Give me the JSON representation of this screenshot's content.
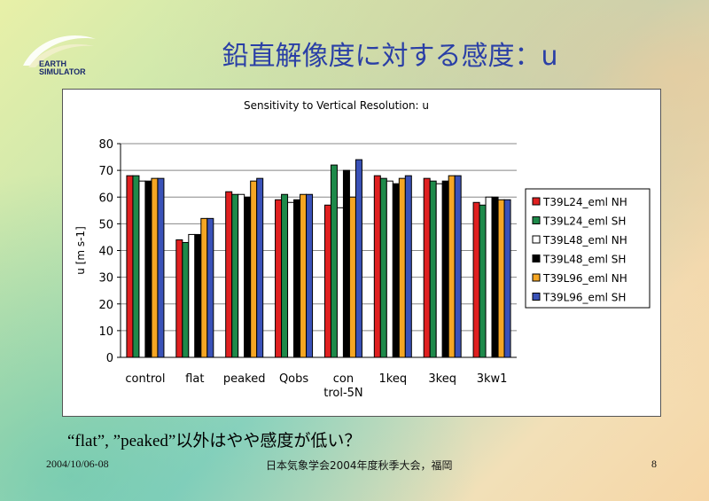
{
  "slide": {
    "title": "鉛直解像度に対する感度：u",
    "logo_line1": "EARTH",
    "logo_line2": "SIMULATOR",
    "caption": "“flat”, ”peaked”以外はやや感度が低い？",
    "footer_date": "2004/10/06-08",
    "footer_conf": "日本気象学会2004年度秋季大会，福岡",
    "page_number": "8"
  },
  "chart_data": {
    "type": "bar",
    "title": "Sensitivity to Vertical Resolution: u",
    "ylabel": "u [m s-1]",
    "xlabel": "",
    "ylim": [
      0,
      80
    ],
    "yticks": [
      0,
      10,
      20,
      30,
      40,
      50,
      60,
      70,
      80
    ],
    "grid": "horizontal",
    "legend": "right",
    "categories": [
      "control",
      "flat",
      "peaked",
      "Qobs",
      "con\ntrol-5N",
      "1keq",
      "3keq",
      "3kw1"
    ],
    "series": [
      {
        "name": "T39L24_eml NH",
        "color": "#e02020",
        "values": [
          68,
          44,
          62,
          59,
          57,
          68,
          67,
          58
        ]
      },
      {
        "name": "T39L24_eml SH",
        "color": "#1e8a4a",
        "values": [
          68,
          43,
          61,
          61,
          72,
          67,
          66,
          57
        ]
      },
      {
        "name": "T39L48_eml NH",
        "color": "#ffffff",
        "values": [
          66,
          46,
          61,
          58,
          56,
          66,
          65,
          60
        ]
      },
      {
        "name": "T39L48_eml SH",
        "color": "#000000",
        "values": [
          66,
          46,
          60,
          59,
          70,
          65,
          66,
          60
        ]
      },
      {
        "name": "T39L96_eml NH",
        "color": "#f5a623",
        "values": [
          67,
          52,
          66,
          61,
          60,
          67,
          68,
          59
        ]
      },
      {
        "name": "T39L96_eml SH",
        "color": "#3a52b8",
        "values": [
          67,
          52,
          67,
          61,
          74,
          68,
          68,
          59
        ]
      }
    ]
  }
}
